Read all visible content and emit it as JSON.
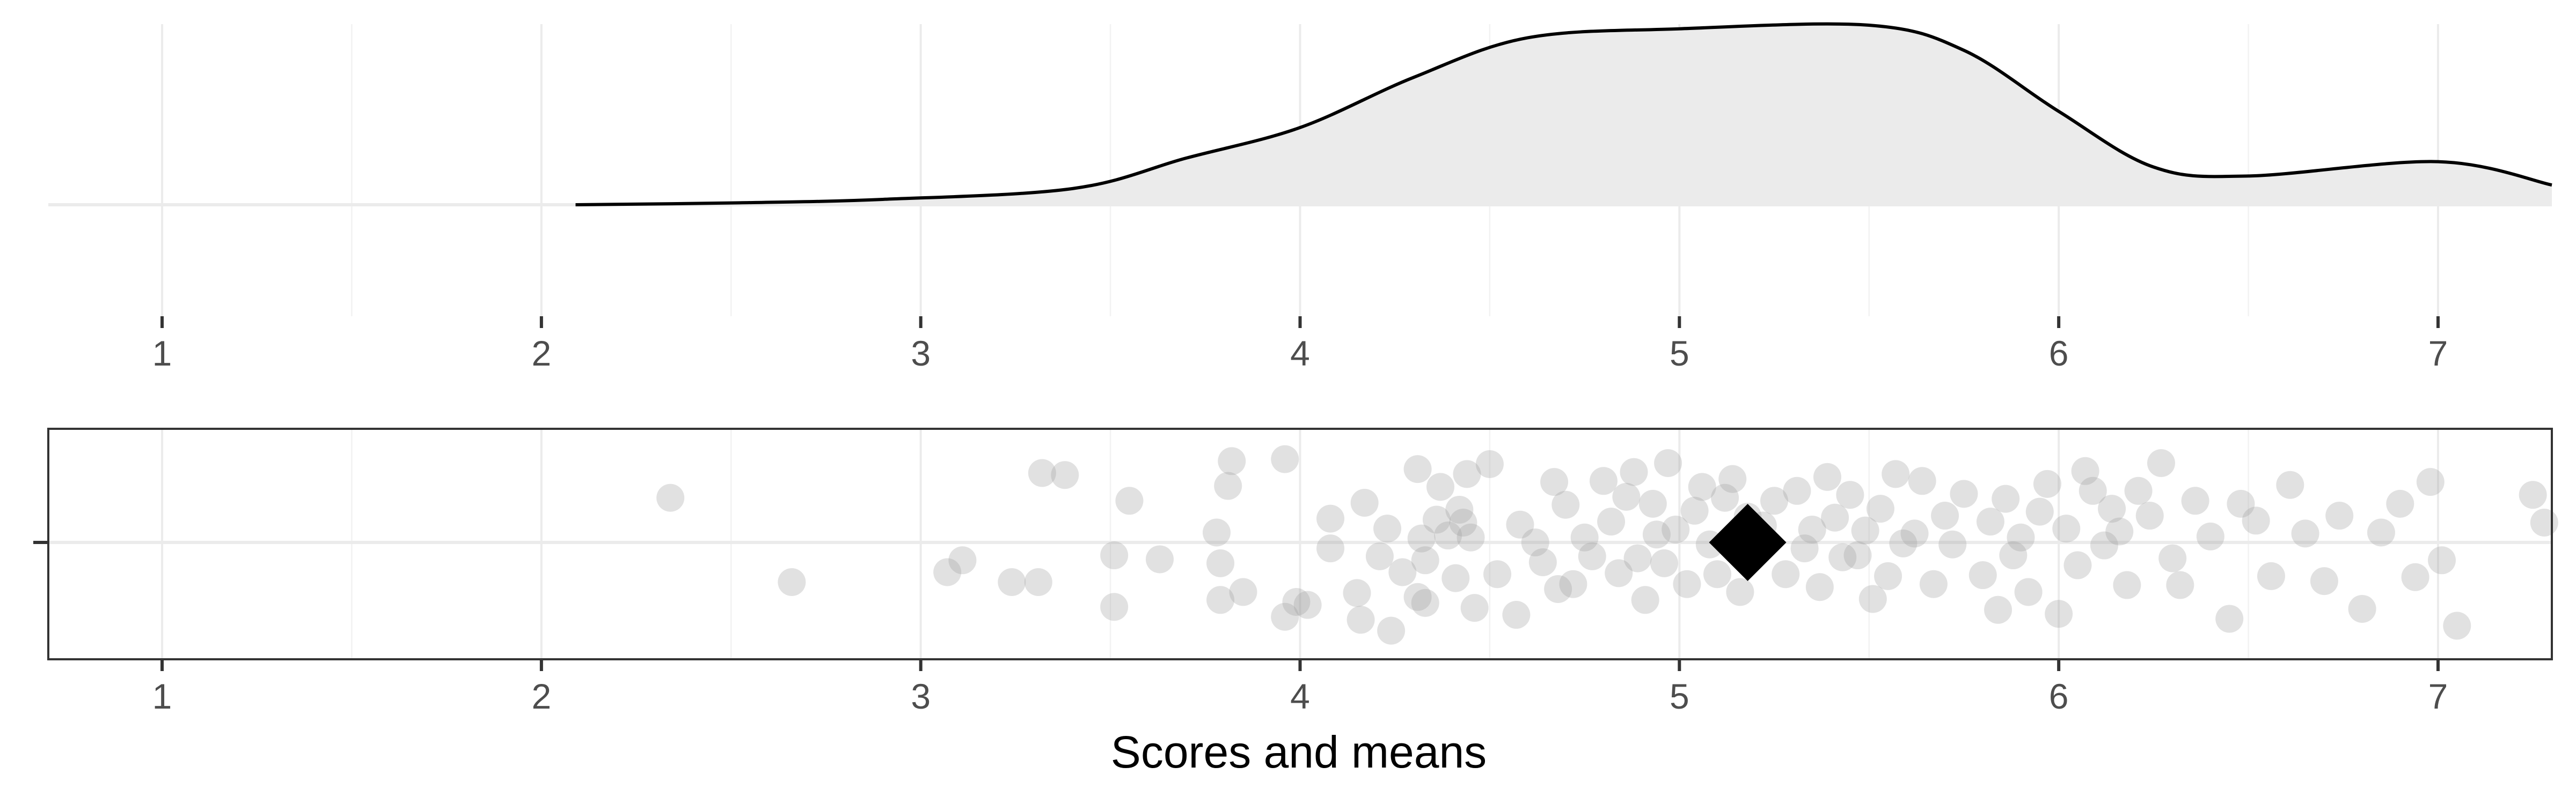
{
  "chart_data": {
    "type": "density-and-jitter",
    "xlabel": "Scores and means",
    "xlim": [
      0.7,
      7.3
    ],
    "x_ticks": [
      "1",
      "2",
      "3",
      "4",
      "5",
      "6",
      "7"
    ],
    "grid": true,
    "mean_marker": 5.18,
    "density_curve": [
      [
        2.09,
        0.0
      ],
      [
        2.5,
        0.01
      ],
      [
        2.9,
        0.03
      ],
      [
        3.4,
        0.09
      ],
      [
        3.7,
        0.26
      ],
      [
        4.0,
        0.43
      ],
      [
        4.3,
        0.71
      ],
      [
        4.6,
        0.93
      ],
      [
        5.0,
        0.98
      ],
      [
        5.5,
        1.0
      ],
      [
        5.75,
        0.86
      ],
      [
        6.0,
        0.52
      ],
      [
        6.25,
        0.21
      ],
      [
        6.5,
        0.16
      ],
      [
        7.0,
        0.24
      ],
      [
        7.3,
        0.11
      ]
    ],
    "points": [
      [
        2.34,
        0.45
      ],
      [
        2.66,
        -0.4
      ],
      [
        3.07,
        -0.3
      ],
      [
        3.11,
        -0.18
      ],
      [
        3.24,
        -0.4
      ],
      [
        3.31,
        -0.4
      ],
      [
        3.32,
        0.7
      ],
      [
        3.38,
        0.68
      ],
      [
        3.51,
        -0.65
      ],
      [
        3.51,
        -0.13
      ],
      [
        3.55,
        0.42
      ],
      [
        3.63,
        -0.17
      ],
      [
        3.78,
        0.1
      ],
      [
        3.79,
        -0.21
      ],
      [
        3.79,
        -0.58
      ],
      [
        3.81,
        0.57
      ],
      [
        3.82,
        0.82
      ],
      [
        3.85,
        -0.5
      ],
      [
        3.96,
        0.84
      ],
      [
        3.96,
        -0.75
      ],
      [
        3.99,
        -0.6
      ],
      [
        4.02,
        -0.63
      ],
      [
        4.08,
        0.24
      ],
      [
        4.08,
        -0.06
      ],
      [
        4.15,
        -0.51
      ],
      [
        4.16,
        -0.78
      ],
      [
        4.17,
        0.4
      ],
      [
        4.21,
        -0.14
      ],
      [
        4.23,
        0.14
      ],
      [
        4.24,
        -0.89
      ],
      [
        4.27,
        -0.3
      ],
      [
        4.31,
        0.74
      ],
      [
        4.31,
        -0.55
      ],
      [
        4.32,
        0.04
      ],
      [
        4.33,
        -0.18
      ],
      [
        4.33,
        -0.61
      ],
      [
        4.36,
        0.23
      ],
      [
        4.37,
        0.56
      ],
      [
        4.39,
        0.07
      ],
      [
        4.41,
        -0.36
      ],
      [
        4.42,
        0.33
      ],
      [
        4.43,
        0.2
      ],
      [
        4.44,
        0.69
      ],
      [
        4.45,
        0.05
      ],
      [
        4.46,
        -0.66
      ],
      [
        4.5,
        0.79
      ],
      [
        4.52,
        -0.32
      ],
      [
        4.57,
        -0.73
      ],
      [
        4.58,
        0.18
      ],
      [
        4.62,
        0.0
      ],
      [
        4.64,
        -0.2
      ],
      [
        4.67,
        0.61
      ],
      [
        4.68,
        -0.47
      ],
      [
        4.7,
        0.38
      ],
      [
        4.72,
        -0.42
      ],
      [
        4.75,
        0.05
      ],
      [
        4.77,
        -0.14
      ],
      [
        4.8,
        0.62
      ],
      [
        4.82,
        0.21
      ],
      [
        4.84,
        -0.31
      ],
      [
        4.86,
        0.46
      ],
      [
        4.88,
        0.71
      ],
      [
        4.89,
        -0.16
      ],
      [
        4.91,
        -0.58
      ],
      [
        4.93,
        0.39
      ],
      [
        4.94,
        0.08
      ],
      [
        4.96,
        -0.21
      ],
      [
        4.97,
        0.8
      ],
      [
        4.99,
        0.13
      ],
      [
        5.02,
        -0.42
      ],
      [
        5.04,
        0.32
      ],
      [
        5.06,
        0.56
      ],
      [
        5.08,
        -0.02
      ],
      [
        5.1,
        -0.32
      ],
      [
        5.12,
        0.45
      ],
      [
        5.14,
        0.64
      ],
      [
        5.16,
        -0.5
      ],
      [
        5.18,
        0.26
      ],
      [
        5.22,
        0.17
      ],
      [
        5.25,
        0.42
      ],
      [
        5.28,
        -0.32
      ],
      [
        5.31,
        0.52
      ],
      [
        5.33,
        -0.06
      ],
      [
        5.35,
        0.13
      ],
      [
        5.37,
        -0.45
      ],
      [
        5.39,
        0.66
      ],
      [
        5.41,
        0.25
      ],
      [
        5.43,
        -0.15
      ],
      [
        5.45,
        0.48
      ],
      [
        5.47,
        -0.13
      ],
      [
        5.49,
        0.12
      ],
      [
        5.51,
        -0.57
      ],
      [
        5.53,
        0.34
      ],
      [
        5.55,
        -0.34
      ],
      [
        5.57,
        0.69
      ],
      [
        5.59,
        -0.01
      ],
      [
        5.62,
        0.09
      ],
      [
        5.64,
        0.62
      ],
      [
        5.67,
        -0.42
      ],
      [
        5.7,
        0.27
      ],
      [
        5.72,
        -0.02
      ],
      [
        5.75,
        0.49
      ],
      [
        5.8,
        -0.33
      ],
      [
        5.82,
        0.21
      ],
      [
        5.84,
        -0.68
      ],
      [
        5.86,
        0.44
      ],
      [
        5.88,
        -0.13
      ],
      [
        5.9,
        0.05
      ],
      [
        5.92,
        -0.5
      ],
      [
        5.95,
        0.31
      ],
      [
        5.97,
        0.59
      ],
      [
        6.0,
        -0.72
      ],
      [
        6.02,
        0.14
      ],
      [
        6.05,
        -0.23
      ],
      [
        6.07,
        0.72
      ],
      [
        6.09,
        0.52
      ],
      [
        6.12,
        -0.03
      ],
      [
        6.14,
        0.34
      ],
      [
        6.16,
        0.11
      ],
      [
        6.18,
        -0.43
      ],
      [
        6.21,
        0.52
      ],
      [
        6.24,
        0.27
      ],
      [
        6.27,
        0.8
      ],
      [
        6.3,
        -0.16
      ],
      [
        6.32,
        -0.43
      ],
      [
        6.36,
        0.42
      ],
      [
        6.4,
        0.06
      ],
      [
        6.45,
        -0.77
      ],
      [
        6.48,
        0.39
      ],
      [
        6.52,
        0.22
      ],
      [
        6.56,
        -0.34
      ],
      [
        6.61,
        0.58
      ],
      [
        6.65,
        0.09
      ],
      [
        6.7,
        -0.39
      ],
      [
        6.74,
        0.27
      ],
      [
        6.8,
        -0.67
      ],
      [
        6.85,
        0.1
      ],
      [
        6.9,
        0.39
      ],
      [
        6.94,
        -0.35
      ],
      [
        6.98,
        0.61
      ],
      [
        7.01,
        -0.18
      ],
      [
        7.05,
        -0.84
      ],
      [
        7.25,
        0.48
      ],
      [
        7.28,
        0.2
      ]
    ]
  }
}
